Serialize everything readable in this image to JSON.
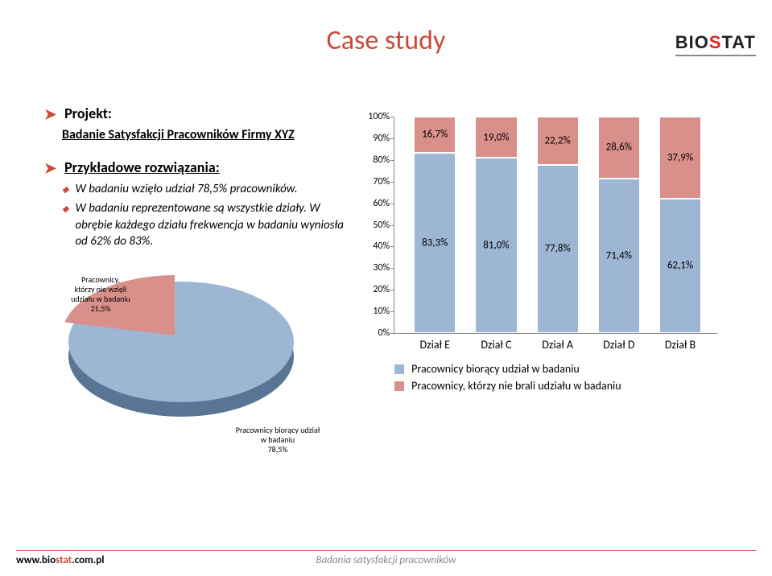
{
  "logo": {
    "text1": "BI",
    "dot": true,
    "text2": "O",
    "text3": "STAT"
  },
  "title": "Case study",
  "left": {
    "projekt_heading": "Projekt:",
    "projekt_line": "Badanie Satysfakcji Pracowników Firmy XYZ",
    "rozw_heading": "Przykładowe rozwiązania:",
    "sub1": "W badaniu wzięło udział 78,5% pracowników.",
    "sub2": "W badaniu reprezentowane są wszystkie działy. W obrębie każdego działu frekwencja w badaniu wyniosła od 62% do 83%."
  },
  "pie": {
    "slice_pct": 21.5,
    "colors": {
      "main": "#9db6d4",
      "slice": "#d98f8a",
      "side": "#6a88ae"
    },
    "label_slice": "Pracownicy,\nktórzy nie wzięli\nudziału w badaniu\n21,5%",
    "label_main": "Pracownicy biorący udział\nw badaniu\n78,5%"
  },
  "bar_chart": {
    "type": "stacked_bar_100",
    "ylim": [
      0,
      100
    ],
    "ytick_step": 10,
    "categories": [
      "Dział E",
      "Dział C",
      "Dział A",
      "Dział D",
      "Dział B"
    ],
    "bottom_values": [
      83.3,
      81.0,
      77.8,
      71.4,
      62.1
    ],
    "top_values": [
      16.7,
      19.0,
      22.2,
      28.6,
      37.9
    ],
    "bottom_labels": [
      "83,3%",
      "81,0%",
      "77,8%",
      "71,4%",
      "62,1%"
    ],
    "top_labels": [
      "16,7%",
      "19,0%",
      "22,2%",
      "28,6%",
      "37,9%"
    ],
    "colors": {
      "bottom": "#9db6d4",
      "top": "#d98f8a",
      "axis": "#888888"
    },
    "bar_positions_pct": [
      6,
      25,
      44,
      63,
      82
    ],
    "bar_width_pct": 13,
    "label_fontsize": 13,
    "axis_fontsize": 12
  },
  "legend": {
    "rows": [
      {
        "color": "#9db6d4",
        "text": "Pracownicy biorący udział w badaniu"
      },
      {
        "color": "#d98f8a",
        "text": "Pracownicy, którzy nie brali udziału w badaniu"
      }
    ]
  },
  "footer": {
    "url_b": "www.bio",
    "url_o": "stat",
    "url_suffix": ".com.pl",
    "center": "Badania satysfakcji pracowników"
  }
}
